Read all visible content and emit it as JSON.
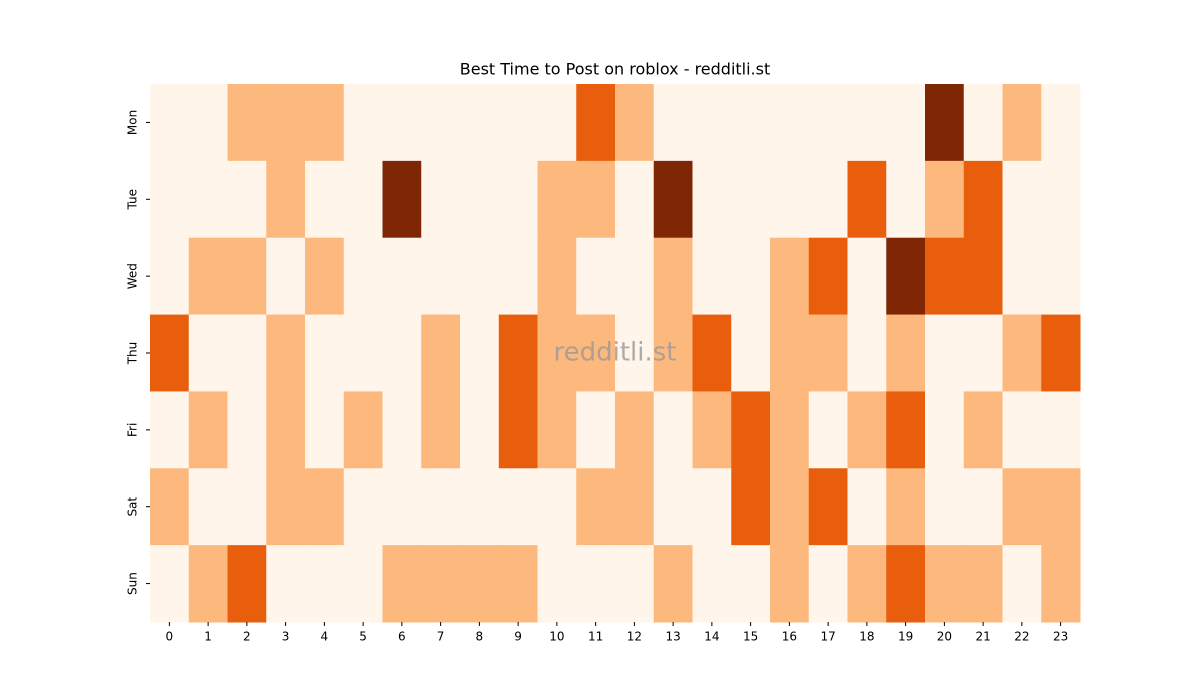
{
  "chart_data": {
    "type": "heatmap",
    "title": "Best Time to Post on roblox - redditli.st",
    "watermark": "redditli.st",
    "x_categories": [
      "0",
      "1",
      "2",
      "3",
      "4",
      "5",
      "6",
      "7",
      "8",
      "9",
      "10",
      "11",
      "12",
      "13",
      "14",
      "15",
      "16",
      "17",
      "18",
      "19",
      "20",
      "21",
      "22",
      "23"
    ],
    "y_categories": [
      "Mon",
      "Tue",
      "Wed",
      "Thu",
      "Fri",
      "Sat",
      "Sun"
    ],
    "values": [
      [
        0,
        0,
        1,
        1,
        1,
        0,
        0,
        0,
        0,
        0,
        0,
        2,
        1,
        0,
        0,
        0,
        0,
        0,
        0,
        0,
        3,
        0,
        1,
        0
      ],
      [
        0,
        0,
        0,
        1,
        0,
        0,
        3,
        0,
        0,
        0,
        1,
        1,
        0,
        3,
        0,
        0,
        0,
        0,
        2,
        0,
        1,
        2,
        0,
        0
      ],
      [
        0,
        1,
        1,
        0,
        1,
        0,
        0,
        0,
        0,
        0,
        1,
        0,
        0,
        1,
        0,
        0,
        1,
        2,
        0,
        3,
        2,
        2,
        0,
        0
      ],
      [
        2,
        0,
        0,
        1,
        0,
        0,
        0,
        1,
        0,
        2,
        1,
        1,
        0,
        1,
        2,
        0,
        1,
        1,
        0,
        1,
        0,
        0,
        1,
        2
      ],
      [
        0,
        1,
        0,
        1,
        0,
        1,
        0,
        1,
        0,
        2,
        1,
        0,
        1,
        0,
        1,
        2,
        1,
        0,
        1,
        2,
        0,
        1,
        0,
        0
      ],
      [
        1,
        0,
        0,
        1,
        1,
        0,
        0,
        0,
        0,
        0,
        0,
        1,
        1,
        0,
        0,
        2,
        1,
        2,
        0,
        1,
        0,
        0,
        1,
        1
      ],
      [
        0,
        1,
        2,
        0,
        0,
        0,
        1,
        1,
        1,
        1,
        0,
        0,
        0,
        1,
        0,
        0,
        1,
        0,
        1,
        2,
        1,
        1,
        0,
        1
      ]
    ],
    "color_scale": [
      "#fff5eb",
      "#fdb97d",
      "#e95e0d",
      "#7f2704"
    ]
  }
}
